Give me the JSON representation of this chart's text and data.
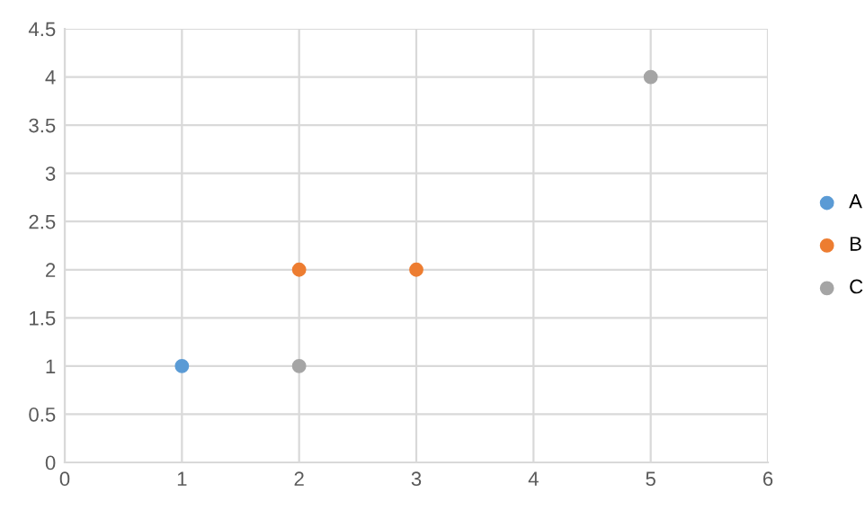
{
  "chart_data": {
    "type": "scatter",
    "series": [
      {
        "name": "A",
        "color": "#5b9bd5",
        "x": [
          1
        ],
        "values": [
          1
        ]
      },
      {
        "name": "B",
        "color": "#ed7d31",
        "x": [
          2,
          3
        ],
        "values": [
          2,
          2
        ]
      },
      {
        "name": "C",
        "color": "#a5a5a5",
        "x": [
          2,
          5
        ],
        "values": [
          1,
          4
        ]
      }
    ],
    "xlim": [
      0,
      6
    ],
    "xticks": [
      0,
      1,
      2,
      3,
      4,
      5,
      6
    ],
    "ylim": [
      0,
      4.5
    ],
    "yticks": [
      0,
      0.5,
      1,
      1.5,
      2,
      2.5,
      3,
      3.5,
      4,
      4.5
    ],
    "grid": true,
    "legend": "right",
    "marker": "circle"
  }
}
